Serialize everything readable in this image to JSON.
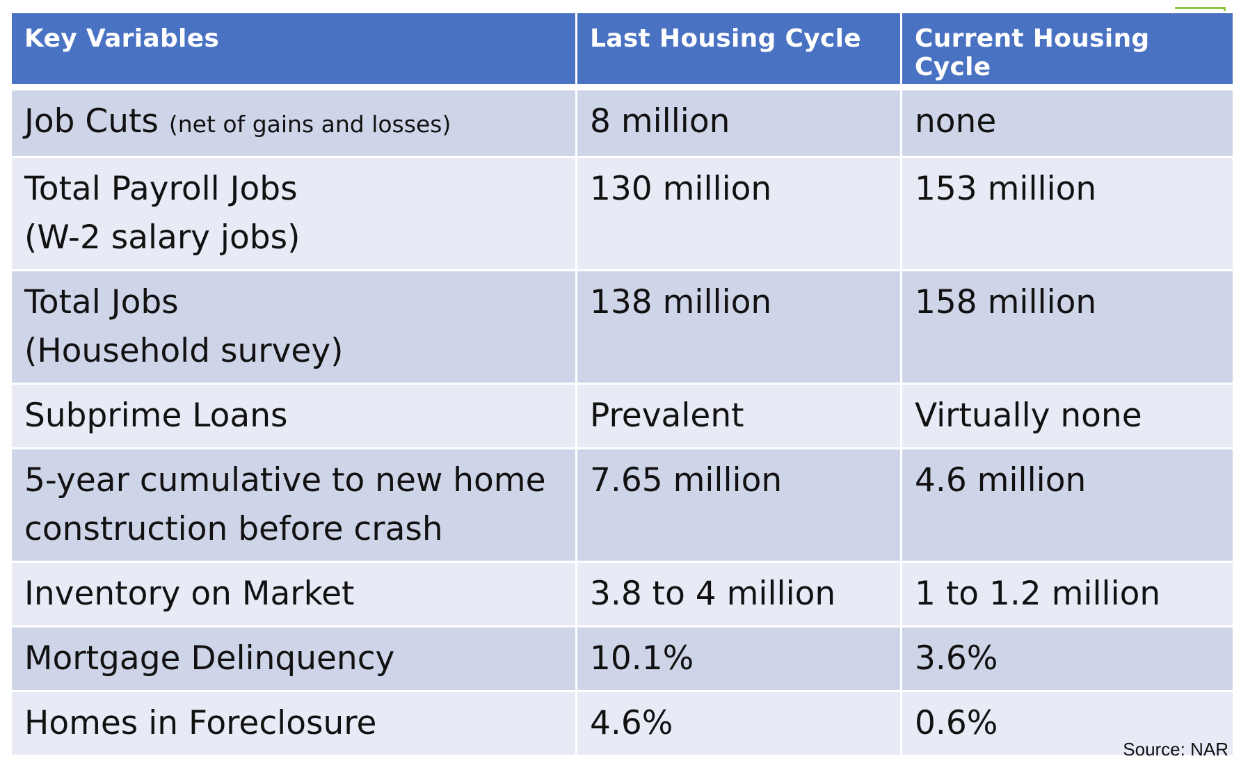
{
  "table": {
    "headers": [
      "Key Variables",
      "Last Housing Cycle",
      "Current Housing Cycle"
    ],
    "rows": [
      {
        "label": "Job Cuts",
        "note": "(net of gains and losses)",
        "last": "8 million",
        "current": "none"
      },
      {
        "label": "Total Payroll Jobs",
        "note": "(W-2 salary jobs)",
        "last": "130 million",
        "current": "153 million"
      },
      {
        "label": "Total Jobs",
        "note": "(Household survey)",
        "last": "138 million",
        "current": "158 million"
      },
      {
        "label": "Subprime Loans",
        "note": "",
        "last": "Prevalent",
        "current": "Virtually none"
      },
      {
        "label": "5-year cumulative to new home",
        "note": "construction before crash",
        "last": "7.65 million",
        "current": "4.6 million"
      },
      {
        "label": "Inventory on Market",
        "note": "",
        "last": "3.8 to 4 million",
        "current": "1 to 1.2 million"
      },
      {
        "label": "Mortgage Delinquency",
        "note": "",
        "last": "10.1%",
        "current": "3.6%"
      },
      {
        "label": "Homes in Foreclosure",
        "note": "",
        "last": "4.6%",
        "current": "0.6%"
      }
    ]
  },
  "source": "Source: NAR",
  "colors": {
    "header_bg": "#4a72c2",
    "row_dark": "#cfd5e8",
    "row_light": "#e8ebf5",
    "accent": "#8cc63f"
  }
}
